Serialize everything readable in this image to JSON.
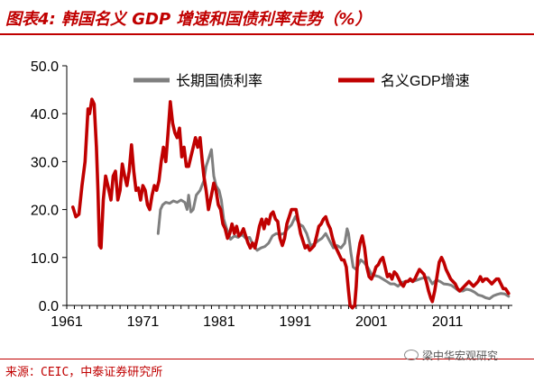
{
  "header": {
    "title": "图表4: 韩国名义 GDP 增速和国债利率走势（%）"
  },
  "footer": {
    "source": "来源：CEIC，中泰证券研究所",
    "watermark": "梁中华宏观研究"
  },
  "colors": {
    "accent": "#c00000",
    "bond_line": "#7f7f7f",
    "gdp_line": "#c00000"
  },
  "chart_data": {
    "type": "line",
    "title": "",
    "xlabel": "",
    "ylabel": "",
    "xlim": [
      1961,
      2019.5
    ],
    "ylim": [
      0,
      50
    ],
    "x_ticks": [
      "1961",
      "1971",
      "1981",
      "1991",
      "2001",
      "2011"
    ],
    "x_tick_values": [
      1961,
      1971,
      1981,
      1991,
      2001,
      2011
    ],
    "y_ticks": [
      "0.0",
      "10.0",
      "20.0",
      "30.0",
      "40.0",
      "50.0"
    ],
    "y_tick_values": [
      0,
      10,
      20,
      30,
      40,
      50
    ],
    "grid": false,
    "legend_position": "top",
    "series": [
      {
        "name": "长期国债利率",
        "color": "#7f7f7f",
        "points": [
          [
            1973.0,
            15
          ],
          [
            1973.3,
            20
          ],
          [
            1973.6,
            21
          ],
          [
            1974.0,
            21.5
          ],
          [
            1974.5,
            21.3
          ],
          [
            1975.0,
            21.8
          ],
          [
            1975.5,
            21.5
          ],
          [
            1976.0,
            22
          ],
          [
            1976.5,
            21.5
          ],
          [
            1976.8,
            20
          ],
          [
            1977.0,
            23
          ],
          [
            1977.3,
            19.5
          ],
          [
            1977.6,
            20
          ],
          [
            1978.0,
            23
          ],
          [
            1978.5,
            24
          ],
          [
            1979.0,
            26
          ],
          [
            1979.3,
            29
          ],
          [
            1979.6,
            30.5
          ],
          [
            1980.0,
            32.5
          ],
          [
            1980.3,
            27
          ],
          [
            1980.6,
            25
          ],
          [
            1981.0,
            24
          ],
          [
            1981.3,
            22
          ],
          [
            1981.6,
            18
          ],
          [
            1982.0,
            16
          ],
          [
            1982.5,
            13.8
          ],
          [
            1983.0,
            14.5
          ],
          [
            1983.5,
            14.2
          ],
          [
            1984.0,
            14.8
          ],
          [
            1984.5,
            14
          ],
          [
            1985.0,
            14.2
          ],
          [
            1985.5,
            12.5
          ],
          [
            1986.0,
            11.5
          ],
          [
            1986.5,
            12
          ],
          [
            1987.0,
            12.3
          ],
          [
            1987.5,
            13
          ],
          [
            1988.0,
            14.5
          ],
          [
            1988.5,
            15
          ],
          [
            1989.0,
            14.8
          ],
          [
            1989.5,
            15
          ],
          [
            1990.0,
            16
          ],
          [
            1990.5,
            16.8
          ],
          [
            1991.0,
            18.5
          ],
          [
            1991.5,
            17
          ],
          [
            1992.0,
            16.5
          ],
          [
            1992.5,
            15
          ],
          [
            1993.0,
            12.5
          ],
          [
            1993.5,
            12.8
          ],
          [
            1994.0,
            13.5
          ],
          [
            1994.5,
            14
          ],
          [
            1995.0,
            15
          ],
          [
            1995.5,
            13.5
          ],
          [
            1996.0,
            12
          ],
          [
            1996.5,
            12.5
          ],
          [
            1997.0,
            12
          ],
          [
            1997.5,
            13
          ],
          [
            1997.8,
            16
          ],
          [
            1998.0,
            15
          ],
          [
            1998.3,
            11
          ],
          [
            1998.6,
            8
          ],
          [
            1999.0,
            7.5
          ],
          [
            1999.3,
            8.5
          ],
          [
            1999.6,
            9.5
          ],
          [
            2000.0,
            9
          ],
          [
            2000.5,
            8
          ],
          [
            2001.0,
            6.5
          ],
          [
            2001.5,
            6.2
          ],
          [
            2002.0,
            6
          ],
          [
            2002.5,
            5.5
          ],
          [
            2003.0,
            5
          ],
          [
            2003.5,
            4.5
          ],
          [
            2004.0,
            4.5
          ],
          [
            2004.5,
            4
          ],
          [
            2005.0,
            4.8
          ],
          [
            2005.5,
            5
          ],
          [
            2006.0,
            5.2
          ],
          [
            2006.5,
            5
          ],
          [
            2007.0,
            5.3
          ],
          [
            2007.5,
            5.6
          ],
          [
            2008.0,
            5.8
          ],
          [
            2008.5,
            5.8
          ],
          [
            2009.0,
            4.5
          ],
          [
            2009.5,
            5.3
          ],
          [
            2010.0,
            5
          ],
          [
            2010.5,
            4.5
          ],
          [
            2011.0,
            4.4
          ],
          [
            2011.5,
            4.2
          ],
          [
            2012.0,
            3.6
          ],
          [
            2012.5,
            3
          ],
          [
            2013.0,
            3
          ],
          [
            2013.5,
            3.4
          ],
          [
            2014.0,
            3.2
          ],
          [
            2014.5,
            2.8
          ],
          [
            2015.0,
            2.2
          ],
          [
            2015.5,
            2
          ],
          [
            2016.0,
            1.6
          ],
          [
            2016.5,
            1.4
          ],
          [
            2017.0,
            2
          ],
          [
            2017.5,
            2.3
          ],
          [
            2018.0,
            2.5
          ],
          [
            2018.5,
            2.4
          ],
          [
            2019.0,
            1.9
          ]
        ]
      },
      {
        "name": "名义GDP增速",
        "color": "#c00000",
        "points": [
          [
            1961.8,
            20.5
          ],
          [
            1962.2,
            18.5
          ],
          [
            1962.6,
            19
          ],
          [
            1963.0,
            25
          ],
          [
            1963.4,
            30
          ],
          [
            1963.8,
            41
          ],
          [
            1964.0,
            40
          ],
          [
            1964.3,
            43
          ],
          [
            1964.6,
            42
          ],
          [
            1964.9,
            33
          ],
          [
            1965.1,
            24
          ],
          [
            1965.3,
            12.5
          ],
          [
            1965.5,
            12
          ],
          [
            1965.8,
            22
          ],
          [
            1966.1,
            27
          ],
          [
            1966.4,
            25
          ],
          [
            1966.8,
            22
          ],
          [
            1967.1,
            27
          ],
          [
            1967.4,
            28
          ],
          [
            1967.7,
            22
          ],
          [
            1968.0,
            24
          ],
          [
            1968.3,
            29.5
          ],
          [
            1968.6,
            27
          ],
          [
            1968.9,
            25
          ],
          [
            1969.2,
            28
          ],
          [
            1969.5,
            33.5
          ],
          [
            1969.8,
            28
          ],
          [
            1970.1,
            24
          ],
          [
            1970.4,
            24.5
          ],
          [
            1970.7,
            22
          ],
          [
            1971.0,
            25
          ],
          [
            1971.3,
            24
          ],
          [
            1971.6,
            21
          ],
          [
            1971.9,
            20
          ],
          [
            1972.2,
            23
          ],
          [
            1972.5,
            25
          ],
          [
            1972.8,
            24
          ],
          [
            1973.1,
            26
          ],
          [
            1973.4,
            30
          ],
          [
            1973.7,
            33
          ],
          [
            1974.0,
            30
          ],
          [
            1974.3,
            36
          ],
          [
            1974.6,
            42.5
          ],
          [
            1974.9,
            38
          ],
          [
            1975.2,
            36
          ],
          [
            1975.5,
            35
          ],
          [
            1975.8,
            37
          ],
          [
            1976.1,
            31
          ],
          [
            1976.4,
            33
          ],
          [
            1976.7,
            29
          ],
          [
            1977.0,
            29
          ],
          [
            1977.3,
            31
          ],
          [
            1977.6,
            33
          ],
          [
            1977.9,
            35
          ],
          [
            1978.2,
            33
          ],
          [
            1978.5,
            35
          ],
          [
            1978.8,
            30
          ],
          [
            1979.0,
            27
          ],
          [
            1979.3,
            24
          ],
          [
            1979.6,
            20
          ],
          [
            1980.0,
            23
          ],
          [
            1980.3,
            25.5
          ],
          [
            1980.6,
            24
          ],
          [
            1980.9,
            21
          ],
          [
            1981.2,
            20
          ],
          [
            1981.5,
            17
          ],
          [
            1981.8,
            16
          ],
          [
            1982.1,
            14
          ],
          [
            1982.4,
            15
          ],
          [
            1982.7,
            17
          ],
          [
            1983.0,
            15
          ],
          [
            1983.3,
            16.5
          ],
          [
            1983.6,
            14.5
          ],
          [
            1983.9,
            15
          ],
          [
            1984.2,
            16
          ],
          [
            1984.5,
            14.5
          ],
          [
            1984.8,
            13
          ],
          [
            1985.1,
            12
          ],
          [
            1985.4,
            13
          ],
          [
            1985.7,
            12
          ],
          [
            1986.0,
            14
          ],
          [
            1986.3,
            16.5
          ],
          [
            1986.6,
            18
          ],
          [
            1986.9,
            16
          ],
          [
            1987.2,
            18
          ],
          [
            1987.5,
            17
          ],
          [
            1987.8,
            19
          ],
          [
            1988.1,
            19.5
          ],
          [
            1988.4,
            18
          ],
          [
            1988.7,
            17.5
          ],
          [
            1989.0,
            14
          ],
          [
            1989.3,
            12.5
          ],
          [
            1989.6,
            14
          ],
          [
            1989.9,
            17
          ],
          [
            1990.2,
            18.5
          ],
          [
            1990.5,
            20
          ],
          [
            1990.8,
            20
          ],
          [
            1991.1,
            20
          ],
          [
            1991.4,
            17.5
          ],
          [
            1991.7,
            15
          ],
          [
            1992.0,
            13.5
          ],
          [
            1992.3,
            12
          ],
          [
            1992.6,
            12.5
          ],
          [
            1992.9,
            11.5
          ],
          [
            1993.2,
            12
          ],
          [
            1993.5,
            12.5
          ],
          [
            1993.8,
            14.5
          ],
          [
            1994.1,
            16.5
          ],
          [
            1994.4,
            17
          ],
          [
            1994.7,
            18
          ],
          [
            1995.0,
            18.5
          ],
          [
            1995.3,
            17
          ],
          [
            1995.6,
            16
          ],
          [
            1995.9,
            14
          ],
          [
            1996.2,
            12.5
          ],
          [
            1996.5,
            11.5
          ],
          [
            1996.8,
            10.5
          ],
          [
            1997.1,
            9.5
          ],
          [
            1997.4,
            9.5
          ],
          [
            1997.7,
            8
          ],
          [
            1998.0,
            3
          ],
          [
            1998.2,
            0
          ],
          [
            1998.5,
            -0.5
          ],
          [
            1998.8,
            0
          ],
          [
            1999.0,
            4
          ],
          [
            1999.2,
            10
          ],
          [
            1999.5,
            13
          ],
          [
            1999.8,
            14.5
          ],
          [
            2000.1,
            12
          ],
          [
            2000.4,
            8
          ],
          [
            2000.7,
            6
          ],
          [
            2001.0,
            5.5
          ],
          [
            2001.3,
            6.5
          ],
          [
            2001.6,
            8
          ],
          [
            2001.9,
            8.5
          ],
          [
            2002.2,
            9.5
          ],
          [
            2002.5,
            10
          ],
          [
            2002.8,
            8
          ],
          [
            2003.1,
            6
          ],
          [
            2003.4,
            6.5
          ],
          [
            2003.7,
            5.5
          ],
          [
            2004.0,
            7
          ],
          [
            2004.3,
            6.5
          ],
          [
            2004.6,
            5.5
          ],
          [
            2004.9,
            4.5
          ],
          [
            2005.2,
            4
          ],
          [
            2005.5,
            5
          ],
          [
            2005.8,
            5
          ],
          [
            2006.1,
            5.5
          ],
          [
            2006.4,
            5
          ],
          [
            2006.7,
            5.5
          ],
          [
            2007.0,
            6.5
          ],
          [
            2007.3,
            7.5
          ],
          [
            2007.6,
            7
          ],
          [
            2007.9,
            6.5
          ],
          [
            2008.2,
            5
          ],
          [
            2008.5,
            3
          ],
          [
            2008.8,
            1.5
          ],
          [
            2009.0,
            0.8
          ],
          [
            2009.3,
            3
          ],
          [
            2009.6,
            6
          ],
          [
            2009.9,
            9
          ],
          [
            2010.2,
            10
          ],
          [
            2010.5,
            9
          ],
          [
            2010.8,
            7.5
          ],
          [
            2011.1,
            6.5
          ],
          [
            2011.4,
            5.5
          ],
          [
            2011.7,
            5
          ],
          [
            2012.0,
            4.5
          ],
          [
            2012.3,
            3.5
          ],
          [
            2012.6,
            3
          ],
          [
            2012.9,
            3.5
          ],
          [
            2013.2,
            4
          ],
          [
            2013.5,
            4.5
          ],
          [
            2013.8,
            5
          ],
          [
            2014.1,
            4.5
          ],
          [
            2014.4,
            4
          ],
          [
            2014.7,
            4.5
          ],
          [
            2015.0,
            5
          ],
          [
            2015.3,
            6
          ],
          [
            2015.6,
            5
          ],
          [
            2015.9,
            5.5
          ],
          [
            2016.2,
            5.5
          ],
          [
            2016.5,
            5
          ],
          [
            2016.8,
            4.5
          ],
          [
            2017.1,
            5
          ],
          [
            2017.4,
            5.5
          ],
          [
            2017.7,
            5.5
          ],
          [
            2018.0,
            4.5
          ],
          [
            2018.3,
            3.5
          ],
          [
            2018.6,
            3.5
          ],
          [
            2019.0,
            2.5
          ]
        ]
      }
    ]
  }
}
